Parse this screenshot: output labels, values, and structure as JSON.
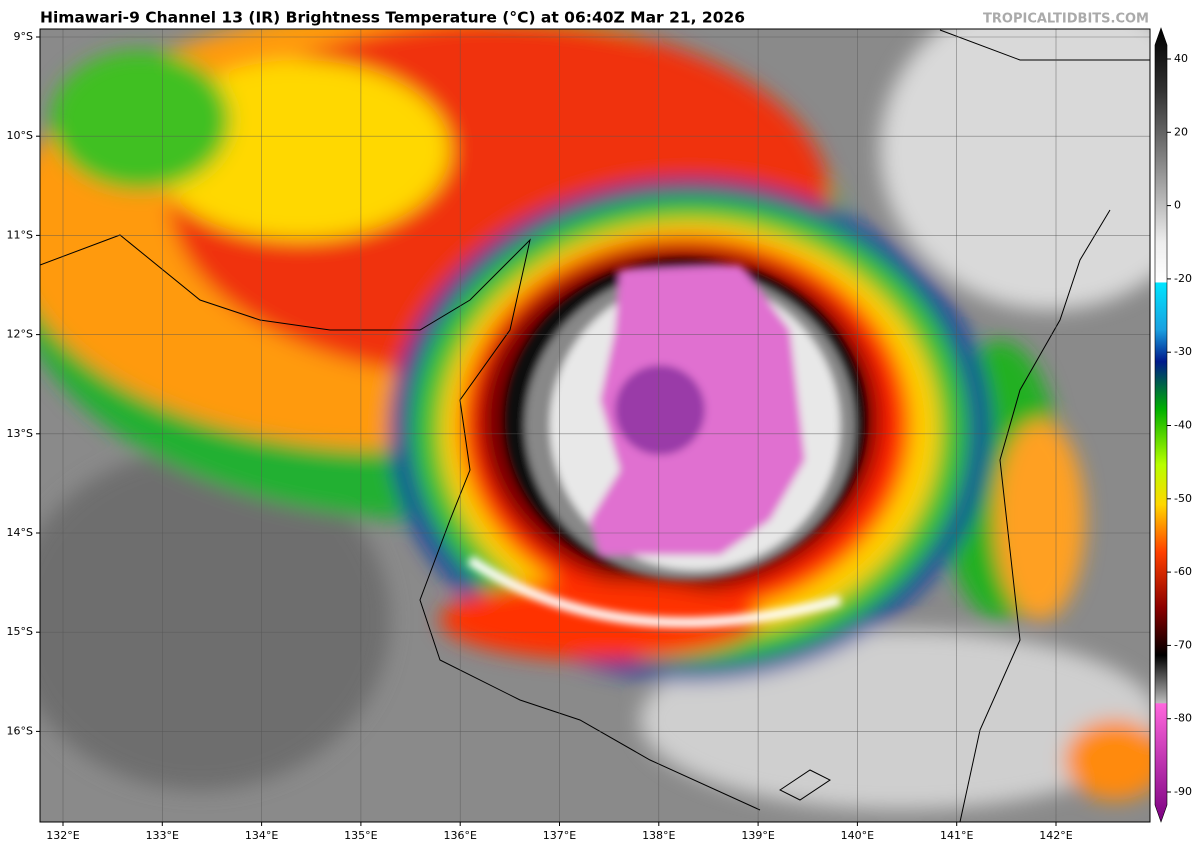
{
  "header": {
    "title": "Himawari-9 Channel 13 (IR) Brightness Temperature (°C) at 06:40Z Mar 21, 2026",
    "credit": "TROPICALTIDBITS.COM"
  },
  "map": {
    "lat_labels": [
      "9°S",
      "10°S",
      "11°S",
      "12°S",
      "13°S",
      "14°S",
      "15°S",
      "16°S"
    ],
    "lon_labels": [
      "132°E",
      "133°E",
      "134°E",
      "135°E",
      "136°E",
      "137°E",
      "138°E",
      "139°E",
      "140°E",
      "141°E",
      "142°E"
    ]
  },
  "colorbar": {
    "ticks": [
      40,
      20,
      0,
      -20,
      -30,
      -40,
      -50,
      -60,
      -70,
      -80,
      -90
    ]
  }
}
